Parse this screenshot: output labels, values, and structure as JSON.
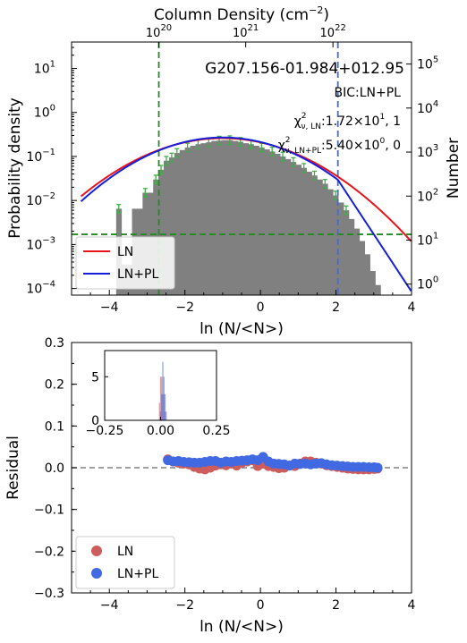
{
  "chart_data": [
    {
      "type": "bar",
      "title": "G207.156-01.984+012.95",
      "top_axis_label": "Column Density (cm",
      "top_axis_label_sup": "−2",
      "top_axis_label_end": ")",
      "top_ticks": [
        {
          "pos": -2.69,
          "base": "10",
          "exp": "20"
        },
        {
          "pos": -0.39,
          "base": "10",
          "exp": "21"
        },
        {
          "pos": 1.92,
          "base": "10",
          "exp": "22"
        }
      ],
      "xlabel": "ln (N/<N>)",
      "ylabel": "Probability density",
      "ylabel_right": "Number",
      "xlim": [
        -5,
        4
      ],
      "ylim_log10": [
        -4.15,
        1.6
      ],
      "x_ticks": [
        "−4",
        "−2",
        "0",
        "2",
        "4"
      ],
      "y_ticks": [
        {
          "base": "10",
          "exp": "−4"
        },
        {
          "base": "10",
          "exp": "−3"
        },
        {
          "base": "10",
          "exp": "−2"
        },
        {
          "base": "10",
          "exp": "−1"
        },
        {
          "base": "10",
          "exp": "0"
        },
        {
          "base": "10",
          "exp": "1"
        }
      ],
      "right_ticks": [
        {
          "base": "10",
          "exp": "0"
        },
        {
          "base": "10",
          "exp": "1"
        },
        {
          "base": "10",
          "exp": "2"
        },
        {
          "base": "10",
          "exp": "3"
        },
        {
          "base": "10",
          "exp": "4"
        },
        {
          "base": "10",
          "exp": "5"
        }
      ],
      "right_offset_log10": -3.9,
      "histogram": {
        "bin_width": 0.14,
        "bins": [
          [
            -3.75,
            0.0065
          ],
          [
            -3.61,
            0.00035
          ],
          [
            -3.47,
            0.00035
          ],
          [
            -3.33,
            0.0065
          ],
          [
            -3.19,
            0.0065
          ],
          [
            -3.05,
            0.015
          ],
          [
            -2.91,
            0.015
          ],
          [
            -2.77,
            0.03
          ],
          [
            -2.63,
            0.05
          ],
          [
            -2.49,
            0.08
          ],
          [
            -2.35,
            0.095
          ],
          [
            -2.21,
            0.12
          ],
          [
            -2.07,
            0.14
          ],
          [
            -1.93,
            0.16
          ],
          [
            -1.79,
            0.175
          ],
          [
            -1.65,
            0.19
          ],
          [
            -1.51,
            0.2
          ],
          [
            -1.37,
            0.21
          ],
          [
            -1.23,
            0.225
          ],
          [
            -1.09,
            0.23
          ],
          [
            -0.95,
            0.235
          ],
          [
            -0.81,
            0.235
          ],
          [
            -0.67,
            0.225
          ],
          [
            -0.53,
            0.215
          ],
          [
            -0.39,
            0.2
          ],
          [
            -0.25,
            0.19
          ],
          [
            -0.11,
            0.175
          ],
          [
            0.03,
            0.16
          ],
          [
            0.17,
            0.145
          ],
          [
            0.31,
            0.13
          ],
          [
            0.45,
            0.115
          ],
          [
            0.59,
            0.1
          ],
          [
            0.73,
            0.087
          ],
          [
            0.87,
            0.075
          ],
          [
            1.01,
            0.065
          ],
          [
            1.15,
            0.055
          ],
          [
            1.29,
            0.045
          ],
          [
            1.43,
            0.037
          ],
          [
            1.57,
            0.03
          ],
          [
            1.71,
            0.024
          ],
          [
            1.85,
            0.018
          ],
          [
            1.99,
            0.013
          ],
          [
            2.13,
            0.009
          ],
          [
            2.27,
            0.006
          ],
          [
            2.41,
            0.0038
          ],
          [
            2.55,
            0.0023
          ],
          [
            2.69,
            0.0012
          ],
          [
            2.83,
            0.0006
          ],
          [
            2.97,
            0.00025
          ],
          [
            3.11,
            0.00012
          ]
        ]
      },
      "error_points": [
        [
          -3.75,
          0.0065
        ],
        [
          -3.05,
          0.015
        ],
        [
          -2.77,
          0.03
        ],
        [
          -2.63,
          0.05
        ],
        [
          -2.49,
          0.08
        ],
        [
          -2.35,
          0.095
        ],
        [
          -2.21,
          0.12
        ],
        [
          -1.93,
          0.16
        ],
        [
          -1.65,
          0.19
        ],
        [
          -1.37,
          0.21
        ],
        [
          -1.09,
          0.23
        ],
        [
          -0.81,
          0.235
        ],
        [
          -0.53,
          0.215
        ],
        [
          -0.25,
          0.19
        ],
        [
          0.03,
          0.16
        ],
        [
          0.31,
          0.13
        ],
        [
          0.59,
          0.1
        ],
        [
          0.87,
          0.075
        ],
        [
          1.15,
          0.055
        ],
        [
          1.43,
          0.037
        ],
        [
          1.71,
          0.024
        ],
        [
          1.99,
          0.013
        ],
        [
          2.27,
          0.006
        ]
      ],
      "vlines": [
        {
          "x": -2.69,
          "color": "#228b22"
        },
        {
          "x": 2.05,
          "color": "#4169e1"
        }
      ],
      "hline": {
        "y": 0.0017,
        "color": "#228b22"
      },
      "curves": {
        "ln": {
          "mu": -1.0,
          "sigma": 1.52,
          "amp": 0.26,
          "color": "#e8141b"
        },
        "lnpl": {
          "mu": -1.0,
          "sigma": 1.45,
          "amp": 0.27,
          "x_break": 2.05,
          "slope": -3.0,
          "color": "#1520d8"
        }
      },
      "legend": {
        "position": "lower-left",
        "items": [
          {
            "label": "LN",
            "color": "#e8141b"
          },
          {
            "label": "LN+PL",
            "color": "#1520d8"
          }
        ]
      },
      "annotations": {
        "bic": "BIC:LN+PL",
        "chi1_sym": "χ",
        "chi1_sup": "2",
        "chi1_sub": "ν, LN",
        "chi1_val": ":1.72×10",
        "chi1_val_sup": "1",
        "chi1_tail": ", 1",
        "chi2_sym": "χ",
        "chi2_sup": "2",
        "chi2_sub": "ν, LN+PL",
        "chi2_val": ":5.40×10",
        "chi2_val_sup": "0",
        "chi2_tail": ", 0"
      }
    },
    {
      "type": "scatter",
      "xlabel": "ln (N/<N>)",
      "ylabel": "Residual",
      "xlim": [
        -5,
        4
      ],
      "ylim": [
        -0.3,
        0.3
      ],
      "x_ticks": [
        "−4",
        "−2",
        "0",
        "2",
        "4"
      ],
      "y_ticks": [
        "−0.3",
        "−0.2",
        "−0.1",
        "0.0",
        "0.1",
        "0.2",
        "0.3"
      ],
      "zero_line": {
        "y": 0,
        "color": "#808080"
      },
      "legend": {
        "position": "lower-left",
        "items": [
          {
            "label": "LN",
            "color": "#cd5c5c"
          },
          {
            "label": "LN+PL",
            "color": "#4169e1"
          }
        ]
      },
      "series": [
        {
          "name": "LN",
          "color": "#cd5c5c",
          "x": [
            -2.45,
            -2.31,
            -2.17,
            -2.03,
            -1.89,
            -1.75,
            -1.61,
            -1.47,
            -1.33,
            -1.19,
            -1.05,
            -0.91,
            -0.77,
            -0.63,
            -0.49,
            -0.35,
            -0.21,
            -0.07,
            0.07,
            0.21,
            0.35,
            0.49,
            0.63,
            0.77,
            0.91,
            1.05,
            1.19,
            1.33,
            1.47,
            1.61,
            1.75,
            1.89,
            2.03,
            2.17,
            2.31,
            2.45,
            2.59,
            2.73,
            2.87,
            3.01,
            3.1
          ],
          "y": [
            0.02,
            0.015,
            0.012,
            0.01,
            0.008,
            0.002,
            -0.002,
            -0.004,
            0.0,
            0.005,
            0.008,
            0.006,
            0.01,
            0.005,
            0.012,
            0.015,
            0.018,
            0.004,
            0.01,
            0.004,
            0.002,
            -0.001,
            0.0,
            0.005,
            0.004,
            0.01,
            0.015,
            0.015,
            0.012,
            0.01,
            0.006,
            0.004,
            0.002,
            0.0,
            -0.002,
            -0.003,
            -0.004,
            -0.004,
            -0.004,
            -0.003,
            -0.002
          ]
        },
        {
          "name": "LN+PL",
          "color": "#4169e1",
          "x": [
            -2.45,
            -2.31,
            -2.17,
            -2.03,
            -1.89,
            -1.75,
            -1.61,
            -1.47,
            -1.33,
            -1.19,
            -1.05,
            -0.91,
            -0.77,
            -0.63,
            -0.49,
            -0.35,
            -0.21,
            -0.07,
            0.07,
            0.21,
            0.35,
            0.49,
            0.63,
            0.77,
            0.91,
            1.05,
            1.19,
            1.33,
            1.47,
            1.61,
            1.75,
            1.89,
            2.03,
            2.17,
            2.31,
            2.45,
            2.59,
            2.73,
            2.87,
            3.01,
            3.1
          ],
          "y": [
            0.018,
            0.015,
            0.016,
            0.014,
            0.013,
            0.012,
            0.012,
            0.014,
            0.016,
            0.016,
            0.012,
            0.015,
            0.014,
            0.016,
            0.017,
            0.018,
            0.02,
            0.018,
            0.026,
            0.015,
            0.01,
            0.009,
            0.008,
            0.005,
            0.01,
            0.009,
            0.01,
            0.008,
            0.01,
            0.011,
            0.008,
            0.006,
            0.005,
            0.004,
            0.003,
            0.002,
            0.002,
            0.002,
            0.001,
            0.001,
            0.0
          ]
        }
      ],
      "inset": {
        "xlim": [
          -0.25,
          0.25
        ],
        "ylim": [
          0,
          8
        ],
        "x_ticks": [
          "−0.25",
          "0.00",
          "0.25"
        ],
        "y_ticks": [
          "0",
          "5"
        ],
        "hist_ln": {
          "color": "#cd5c5c",
          "bins": [
            [
              -0.005,
              2.0
            ],
            [
              0.0,
              5.0
            ],
            [
              0.005,
              5.0
            ],
            [
              0.01,
              3.0
            ],
            [
              0.015,
              3.0
            ],
            [
              0.02,
              1.0
            ]
          ]
        },
        "hist_lnpl": {
          "color": "#4169e1",
          "bins": [
            [
              0.0,
              1.0
            ],
            [
              0.005,
              3.0
            ],
            [
              0.01,
              6.7
            ],
            [
              0.015,
              5.0
            ],
            [
              0.02,
              3.0
            ],
            [
              0.025,
              1.0
            ]
          ]
        }
      }
    }
  ]
}
